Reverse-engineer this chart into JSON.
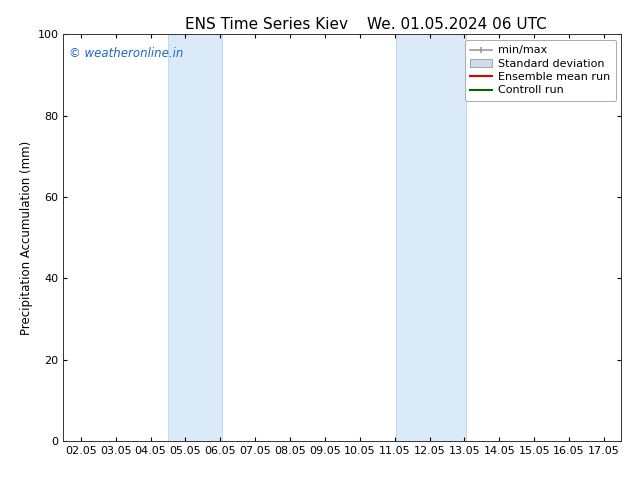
{
  "title_left": "ENS Time Series Kiev",
  "title_right": "We. 01.05.2024 06 UTC",
  "ylabel": "Precipitation Accumulation (mm)",
  "ylim": [
    0,
    100
  ],
  "yticks": [
    0,
    20,
    40,
    60,
    80,
    100
  ],
  "x_labels": [
    "02.05",
    "03.05",
    "04.05",
    "05.05",
    "06.05",
    "07.05",
    "08.05",
    "09.05",
    "10.05",
    "11.05",
    "12.05",
    "13.05",
    "14.05",
    "15.05",
    "16.05",
    "17.05"
  ],
  "x_values": [
    2,
    3,
    4,
    5,
    6,
    7,
    8,
    9,
    10,
    11,
    12,
    13,
    14,
    15,
    16,
    17
  ],
  "xlim_min": 1.5,
  "xlim_max": 17.5,
  "shaded_regions": [
    {
      "x_start": 4.5,
      "x_end": 6.05
    },
    {
      "x_start": 11.05,
      "x_end": 13.05
    }
  ],
  "shaded_color": "#daeaf8",
  "shaded_edge_color": "#b8d4f0",
  "watermark_text": "© weatheronline.in",
  "watermark_color": "#1a6abf",
  "background_color": "#ffffff",
  "legend_items": [
    {
      "label": "min/max",
      "color": "#999999",
      "style": "errorbar"
    },
    {
      "label": "Standard deviation",
      "color": "#ccddee",
      "style": "box"
    },
    {
      "label": "Ensemble mean run",
      "color": "#dd0000",
      "style": "line"
    },
    {
      "label": "Controll run",
      "color": "#006600",
      "style": "line"
    }
  ],
  "title_fontsize": 11,
  "axis_fontsize": 8,
  "ylabel_fontsize": 8.5,
  "legend_fontsize": 8,
  "watermark_fontsize": 8.5
}
